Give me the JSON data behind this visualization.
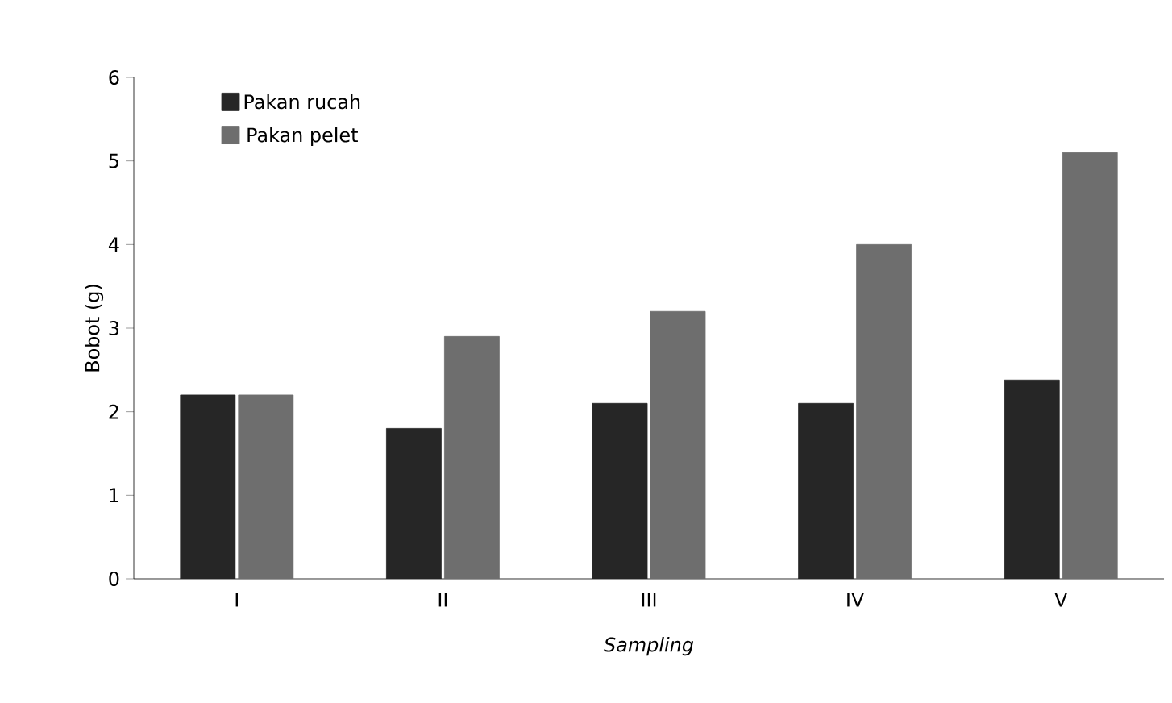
{
  "chart_data": {
    "type": "bar",
    "xlabel": "*Sampling*",
    "ylabel": "Bobot (g)",
    "categories": [
      "I",
      "II",
      "III",
      "IV",
      "V"
    ],
    "series": [
      {
        "name": "Pakan rucah",
        "color": "#262626",
        "values": [
          2.2,
          1.8,
          2.1,
          2.1,
          2.38
        ]
      },
      {
        "name": "Pakan pelet",
        "color": "#6e6e6e",
        "values": [
          2.2,
          2.9,
          3.2,
          4.0,
          5.1
        ]
      }
    ],
    "ylim": [
      0,
      6
    ],
    "yticks": [
      0,
      1,
      2,
      3,
      4,
      5,
      6
    ],
    "legend": "top left",
    "grid": false
  }
}
